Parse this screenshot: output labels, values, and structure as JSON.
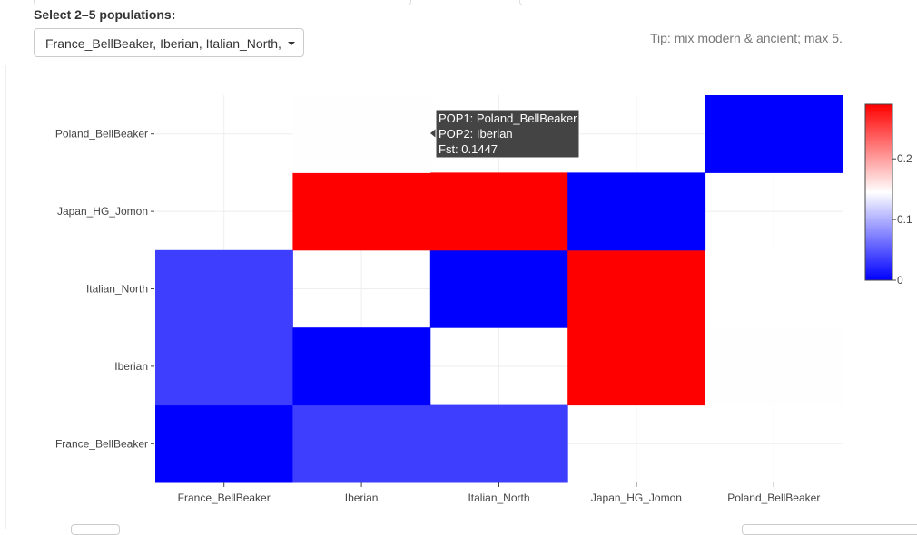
{
  "controls": {
    "label": "Select 2–5 populations:",
    "selected_value": "France_BellBeaker, Iberian, Italian_North,",
    "tip": "Tip: mix modern & ancient; max 5."
  },
  "colors": {
    "low": "#0000ff",
    "mid": "#ffffff",
    "high": "#ff0000",
    "grid": "#eeeeee",
    "tooltip_bg": "#444444"
  },
  "chart_data": {
    "type": "heatmap",
    "x_categories": [
      "France_BellBeaker",
      "Iberian",
      "Italian_North",
      "Japan_HG_Jomon",
      "Poland_BellBeaker"
    ],
    "y_categories": [
      "France_BellBeaker",
      "Iberian",
      "Italian_North",
      "Japan_HG_Jomon",
      "Poland_BellBeaker"
    ],
    "z": [
      [
        0.0,
        0.035,
        0.035,
        null,
        null
      ],
      [
        0.035,
        0.0,
        null,
        0.29,
        0.1447
      ],
      [
        0.035,
        null,
        0.0,
        0.29,
        0.145
      ],
      [
        null,
        0.29,
        0.29,
        0.0,
        null
      ],
      [
        null,
        0.1447,
        null,
        null,
        0.0
      ]
    ],
    "zmin": 0,
    "zmax": 0.29,
    "colorbar_ticks": [
      {
        "value": 0,
        "label": "0"
      },
      {
        "value": 0.1,
        "label": "0.1"
      },
      {
        "value": 0.2,
        "label": "0.2"
      }
    ],
    "tooltip": {
      "line1": "POP1: Poland_BellBeaker",
      "line2": "POP2: Iberian",
      "line3": "Fst: 0.1447"
    }
  }
}
